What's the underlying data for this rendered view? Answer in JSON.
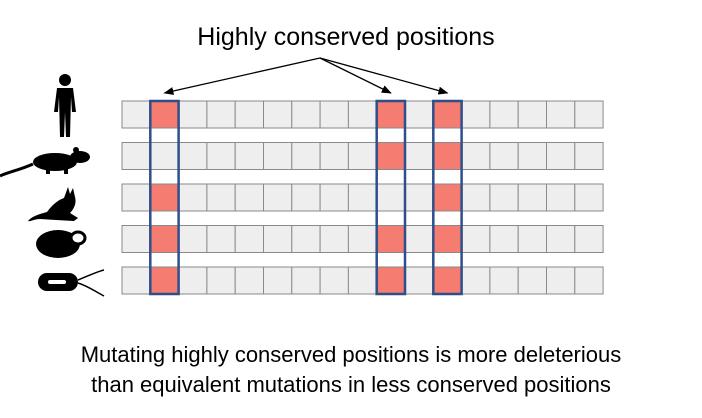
{
  "title": "Highly conserved positions",
  "caption": {
    "line1": "Mutating highly conserved positions is more deleterious",
    "line2": "than equivalent mutations in less conserved positions"
  },
  "organisms": [
    {
      "name": "human",
      "icon": "human-silhouette-icon"
    },
    {
      "name": "rat",
      "icon": "rat-silhouette-icon"
    },
    {
      "name": "cat",
      "icon": "cat-silhouette-icon"
    },
    {
      "name": "yeast",
      "icon": "yeast-cell-icon"
    },
    {
      "name": "bacterium",
      "icon": "bacterium-icon"
    }
  ],
  "grid": {
    "columns": 17,
    "rows": [
      {
        "organism": "human",
        "conserved_cols": [
          1,
          9,
          11
        ]
      },
      {
        "organism": "rat",
        "conserved_cols": [
          9,
          11
        ]
      },
      {
        "organism": "cat",
        "conserved_cols": [
          1,
          11
        ]
      },
      {
        "organism": "yeast",
        "conserved_cols": [
          1,
          9,
          11
        ]
      },
      {
        "organism": "bacterium",
        "conserved_cols": [
          1,
          9,
          11
        ]
      }
    ],
    "highlighted_columns": [
      1,
      9,
      11
    ]
  },
  "colors": {
    "cell_fill": "#eeeeee",
    "cell_stroke": "#8a8a8a",
    "conserved_fill": "#f47c70",
    "highlight_stroke": "#2f4f8a",
    "arrow": "#000000"
  }
}
